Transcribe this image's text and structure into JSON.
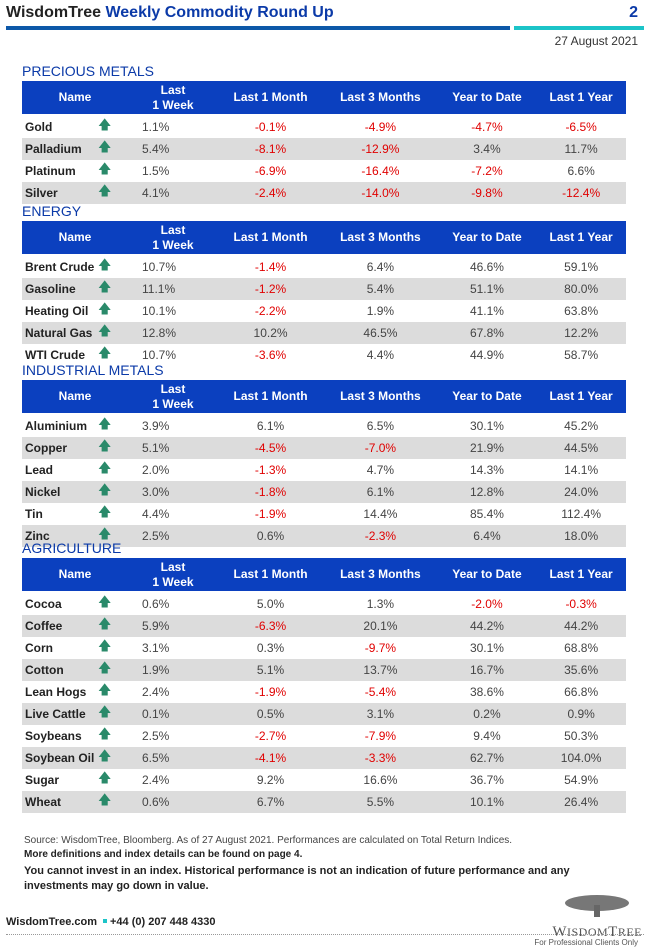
{
  "header": {
    "brand": "WisdomTree",
    "title": "Weekly Commodity Round Up",
    "page": "2",
    "date": "27 August 2021"
  },
  "columns": [
    "Name",
    "Last\n1 Week",
    "Last 1 Month",
    "Last 3 Months",
    "Year to Date",
    "Last 1 Year"
  ],
  "colors": {
    "header_bg": "#0b40bf",
    "negative": "#e00000",
    "arrow": "#2a8a6a",
    "accent": "#1cc4c8"
  },
  "sections": [
    {
      "title": "PRECIOUS METALS",
      "rows": [
        [
          "Gold",
          "1.1%",
          "-0.1%",
          "-4.9%",
          "-4.7%",
          "-6.5%"
        ],
        [
          "Palladium",
          "5.4%",
          "-8.1%",
          "-12.9%",
          "3.4%",
          "11.7%"
        ],
        [
          "Platinum",
          "1.5%",
          "-6.9%",
          "-16.4%",
          "-7.2%",
          "6.6%"
        ],
        [
          "Silver",
          "4.1%",
          "-2.4%",
          "-14.0%",
          "-9.8%",
          "-12.4%"
        ]
      ]
    },
    {
      "title": "ENERGY",
      "rows": [
        [
          "Brent Crude",
          "10.7%",
          "-1.4%",
          "6.4%",
          "46.6%",
          "59.1%"
        ],
        [
          "Gasoline",
          "11.1%",
          "-1.2%",
          "5.4%",
          "51.1%",
          "80.0%"
        ],
        [
          "Heating Oil",
          "10.1%",
          "-2.2%",
          "1.9%",
          "41.1%",
          "63.8%"
        ],
        [
          "Natural Gas",
          "12.8%",
          "10.2%",
          "46.5%",
          "67.8%",
          "12.2%"
        ],
        [
          "WTI Crude",
          "10.7%",
          "-3.6%",
          "4.4%",
          "44.9%",
          "58.7%"
        ]
      ]
    },
    {
      "title": "INDUSTRIAL METALS",
      "rows": [
        [
          "Aluminium",
          "3.9%",
          "6.1%",
          "6.5%",
          "30.1%",
          "45.2%"
        ],
        [
          "Copper",
          "5.1%",
          "-4.5%",
          "-7.0%",
          "21.9%",
          "44.5%"
        ],
        [
          "Lead",
          "2.0%",
          "-1.3%",
          "4.7%",
          "14.3%",
          "14.1%"
        ],
        [
          "Nickel",
          "3.0%",
          "-1.8%",
          "6.1%",
          "12.8%",
          "24.0%"
        ],
        [
          "Tin",
          "4.4%",
          "-1.9%",
          "14.4%",
          "85.4%",
          "112.4%"
        ],
        [
          "Zinc",
          "2.5%",
          "0.6%",
          "-2.3%",
          "6.4%",
          "18.0%"
        ]
      ]
    },
    {
      "title": "AGRICULTURE",
      "rows": [
        [
          "Cocoa",
          "0.6%",
          "5.0%",
          "1.3%",
          "-2.0%",
          "-0.3%"
        ],
        [
          "Coffee",
          "5.9%",
          "-6.3%",
          "20.1%",
          "44.2%",
          "44.2%"
        ],
        [
          "Corn",
          "3.1%",
          "0.3%",
          "-9.7%",
          "30.1%",
          "68.8%"
        ],
        [
          "Cotton",
          "1.9%",
          "5.1%",
          "13.7%",
          "16.7%",
          "35.6%"
        ],
        [
          "Lean Hogs",
          "2.4%",
          "-1.9%",
          "-5.4%",
          "38.6%",
          "66.8%"
        ],
        [
          "Live Cattle",
          "0.1%",
          "0.5%",
          "3.1%",
          "0.2%",
          "0.9%"
        ],
        [
          "Soybeans",
          "2.5%",
          "-2.7%",
          "-7.9%",
          "9.4%",
          "50.3%"
        ],
        [
          "Soybean Oil",
          "6.5%",
          "-4.1%",
          "-3.3%",
          "62.7%",
          "104.0%"
        ],
        [
          "Sugar",
          "2.4%",
          "9.2%",
          "16.6%",
          "36.7%",
          "54.9%"
        ],
        [
          "Wheat",
          "0.6%",
          "6.7%",
          "5.5%",
          "10.1%",
          "26.4%"
        ]
      ]
    }
  ],
  "notes": {
    "source": "Source: WisdomTree, Bloomberg. As of 27 August 2021. Performances are calculated on Total Return Indices.",
    "more": "More definitions and index details can be found on page 4.",
    "disclaimer": "You cannot invest in an index. Historical performance is not an indication of future performance and any investments may go down in value."
  },
  "footer": {
    "website": "WisdomTree.com",
    "phone": "+44 (0) 207 448 4330",
    "logo": "WISDOMTREE",
    "audience": "For Professional Clients Only"
  }
}
